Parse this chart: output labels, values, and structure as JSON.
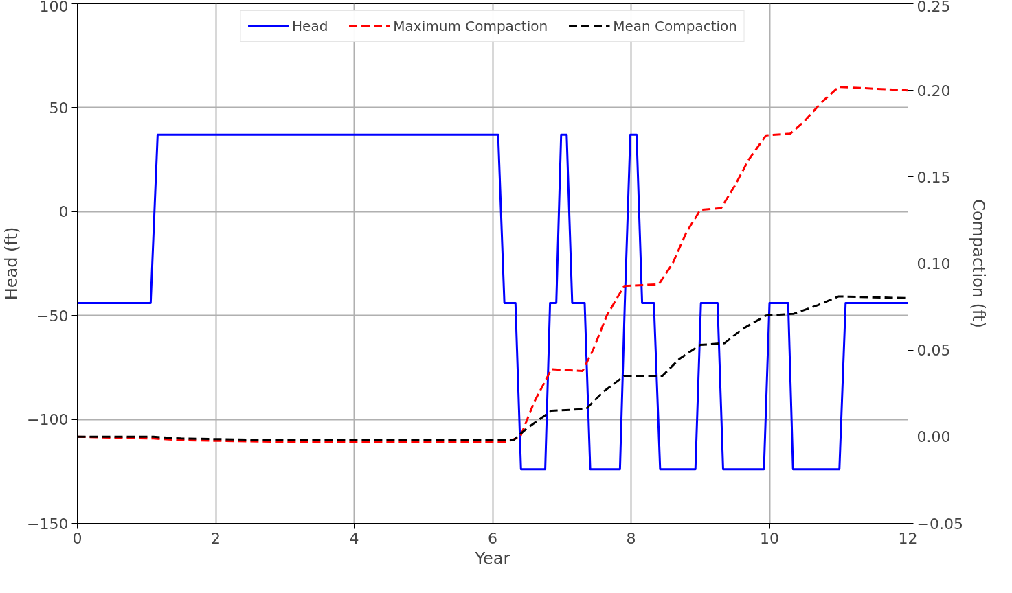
{
  "chart_data": {
    "type": "line",
    "xlabel": "Year",
    "ylabel": "Head (ft)",
    "y2label": "Compaction (ft)",
    "xlim": [
      0,
      12
    ],
    "xticks": [
      0,
      2,
      4,
      6,
      8,
      10,
      12
    ],
    "ylim": [
      -150,
      100
    ],
    "yticks": [
      -150,
      -100,
      -50,
      0,
      50,
      100
    ],
    "y2lim": [
      -0.05,
      0.25
    ],
    "y2ticks": [
      {
        "value": -0.05,
        "label": "−0.05"
      },
      {
        "value": 0,
        "label": "0.00"
      },
      {
        "value": 0.05,
        "label": "0.05"
      },
      {
        "value": 0.1,
        "label": "0.10"
      },
      {
        "value": 0.15,
        "label": "0.15"
      },
      {
        "value": 0.2,
        "label": "0.20"
      },
      {
        "value": 0.25,
        "label": "0.25"
      }
    ],
    "grid": true,
    "legend": "top",
    "marker": "none",
    "series": [
      {
        "name": "Head",
        "color": "#0000ff",
        "line_style": "solid",
        "x": [
          0,
          1.06,
          1.16,
          6.08,
          6.17,
          6.33,
          6.41,
          6.76,
          6.83,
          6.92,
          6.99,
          7.07,
          7.15,
          7.33,
          7.41,
          7.84,
          7.91,
          7.99,
          8.08,
          8.16,
          8.33,
          8.42,
          8.93,
          9.01,
          9.25,
          9.33,
          9.92,
          10.0,
          10.27,
          10.34,
          11.01,
          11.1,
          12
        ],
        "values": [
          -44,
          -44,
          37,
          37,
          -44,
          -44,
          -124,
          -124,
          -44,
          -44,
          37,
          37,
          -44,
          -44,
          -124,
          -124,
          -44,
          37,
          37,
          -44,
          -44,
          -124,
          -124,
          -44,
          -44,
          -124,
          -124,
          -44,
          -44,
          -124,
          -124,
          -44,
          -44
        ]
      },
      {
        "name": "Maximum Compaction",
        "color": "#ff0000",
        "line_style": "dashed",
        "axis": "y2",
        "x": [
          0,
          1.1,
          1.5,
          3,
          6.2,
          6.4,
          6.6,
          6.85,
          7.3,
          7.45,
          7.65,
          7.9,
          8.4,
          8.6,
          8.8,
          9.0,
          9.3,
          9.5,
          9.7,
          9.95,
          10.3,
          10.5,
          10.75,
          11.0,
          12
        ],
        "values": [
          0,
          -0.001,
          -0.002,
          -0.003,
          -0.003,
          0.0,
          0.02,
          0.039,
          0.038,
          0.05,
          0.07,
          0.087,
          0.088,
          0.1,
          0.118,
          0.131,
          0.132,
          0.145,
          0.16,
          0.174,
          0.175,
          0.182,
          0.193,
          0.202,
          0.2
        ]
      },
      {
        "name": "Mean Compaction",
        "color": "#000000",
        "line_style": "dashed",
        "axis": "y2",
        "x": [
          0,
          1.1,
          1.5,
          3,
          6.3,
          6.5,
          6.85,
          7.35,
          7.6,
          7.9,
          8.45,
          8.7,
          9.0,
          9.35,
          9.6,
          9.95,
          10.35,
          10.7,
          11.0,
          12
        ],
        "values": [
          0,
          0,
          -0.001,
          -0.002,
          -0.002,
          0.005,
          0.015,
          0.016,
          0.026,
          0.035,
          0.035,
          0.045,
          0.053,
          0.054,
          0.062,
          0.07,
          0.071,
          0.076,
          0.081,
          0.08
        ]
      }
    ]
  }
}
